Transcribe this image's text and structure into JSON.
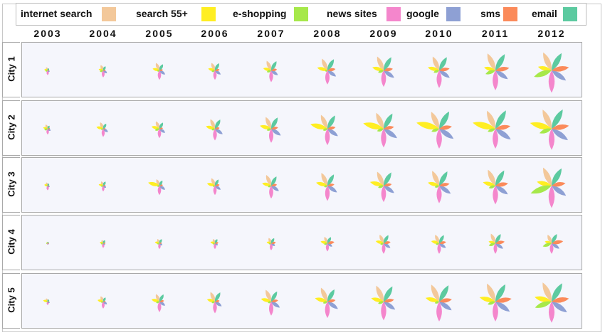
{
  "chart_data": {
    "type": "petal-glyph-matrix",
    "legend": [
      {
        "label": "internet search",
        "color": "#f3c89a"
      },
      {
        "label": "search 55+",
        "color": "#ffee22"
      },
      {
        "label": "e-shopping",
        "color": "#a6e84a"
      },
      {
        "label": "news sites",
        "color": "#f486cc"
      },
      {
        "label": "google",
        "color": "#8ea0d4"
      },
      {
        "label": "sms",
        "color": "#fb8a5a"
      },
      {
        "label": "email",
        "color": "#5ccaa0"
      }
    ],
    "years": [
      "2003",
      "2004",
      "2005",
      "2006",
      "2007",
      "2008",
      "2009",
      "2010",
      "2011",
      "2012"
    ],
    "cities": [
      "City 1",
      "City 2",
      "City 3",
      "City 4",
      "City 5"
    ],
    "values": [
      [
        [
          0.15,
          0.15,
          0.1,
          0.2,
          0.1,
          0.05,
          0.1
        ],
        [
          0.25,
          0.2,
          0.15,
          0.3,
          0.2,
          0.1,
          0.2
        ],
        [
          0.35,
          0.3,
          0.1,
          0.4,
          0.3,
          0.15,
          0.3
        ],
        [
          0.35,
          0.3,
          0.15,
          0.4,
          0.3,
          0.2,
          0.35
        ],
        [
          0.45,
          0.35,
          0.2,
          0.5,
          0.35,
          0.25,
          0.45
        ],
        [
          0.55,
          0.45,
          0.1,
          0.6,
          0.45,
          0.35,
          0.55
        ],
        [
          0.65,
          0.5,
          0.25,
          0.7,
          0.55,
          0.4,
          0.65
        ],
        [
          0.65,
          0.5,
          0.25,
          0.75,
          0.55,
          0.45,
          0.65
        ],
        [
          0.8,
          0.5,
          0.45,
          0.85,
          0.65,
          0.6,
          0.8
        ],
        [
          0.85,
          0.6,
          0.8,
          0.95,
          0.75,
          0.75,
          0.85
        ]
      ],
      [
        [
          0.2,
          0.2,
          0.15,
          0.25,
          0.15,
          0.1,
          0.15
        ],
        [
          0.3,
          0.3,
          0.1,
          0.35,
          0.25,
          0.1,
          0.25
        ],
        [
          0.35,
          0.35,
          0.2,
          0.4,
          0.3,
          0.15,
          0.3
        ],
        [
          0.45,
          0.4,
          0.15,
          0.5,
          0.4,
          0.2,
          0.45
        ],
        [
          0.55,
          0.5,
          0.2,
          0.6,
          0.5,
          0.3,
          0.55
        ],
        [
          0.65,
          0.75,
          0.2,
          0.7,
          0.55,
          0.35,
          0.65
        ],
        [
          0.75,
          0.9,
          0.3,
          0.8,
          0.7,
          0.45,
          0.75
        ],
        [
          0.8,
          1.0,
          0.35,
          0.85,
          0.75,
          0.55,
          0.85
        ],
        [
          0.85,
          1.0,
          0.35,
          0.85,
          0.8,
          0.65,
          0.9
        ],
        [
          0.9,
          0.95,
          0.55,
          0.9,
          0.85,
          0.75,
          0.95
        ]
      ],
      [
        [
          0.15,
          0.15,
          0.05,
          0.2,
          0.1,
          0.05,
          0.1
        ],
        [
          0.2,
          0.2,
          0.1,
          0.25,
          0.15,
          0.1,
          0.2
        ],
        [
          0.3,
          0.5,
          0.1,
          0.4,
          0.3,
          0.15,
          0.25
        ],
        [
          0.35,
          0.35,
          0.1,
          0.4,
          0.3,
          0.2,
          0.3
        ],
        [
          0.5,
          0.4,
          0.15,
          0.55,
          0.4,
          0.25,
          0.45
        ],
        [
          0.6,
          0.5,
          0.15,
          0.65,
          0.5,
          0.3,
          0.55
        ],
        [
          0.65,
          0.6,
          0.25,
          0.7,
          0.55,
          0.35,
          0.65
        ],
        [
          0.7,
          0.5,
          0.2,
          0.75,
          0.6,
          0.45,
          0.7
        ],
        [
          0.75,
          0.55,
          0.3,
          0.8,
          0.65,
          0.55,
          0.75
        ],
        [
          0.85,
          0.65,
          0.95,
          0.95,
          0.75,
          0.6,
          0.85
        ]
      ],
      [
        [
          0.05,
          0.05,
          0.05,
          0.05,
          0.05,
          0.05,
          0.05
        ],
        [
          0.15,
          0.15,
          0.1,
          0.2,
          0.1,
          0.1,
          0.15
        ],
        [
          0.2,
          0.2,
          0.1,
          0.25,
          0.15,
          0.1,
          0.2
        ],
        [
          0.2,
          0.2,
          0.1,
          0.25,
          0.15,
          0.15,
          0.2
        ],
        [
          0.25,
          0.2,
          0.1,
          0.3,
          0.2,
          0.2,
          0.25
        ],
        [
          0.3,
          0.3,
          0.15,
          0.35,
          0.25,
          0.3,
          0.3
        ],
        [
          0.4,
          0.35,
          0.15,
          0.45,
          0.35,
          0.3,
          0.4
        ],
        [
          0.4,
          0.35,
          0.15,
          0.45,
          0.35,
          0.3,
          0.4
        ],
        [
          0.45,
          0.3,
          0.3,
          0.45,
          0.4,
          0.4,
          0.45
        ],
        [
          0.4,
          0.3,
          0.4,
          0.45,
          0.4,
          0.5,
          0.45
        ]
      ],
      [
        [
          0.15,
          0.2,
          0.05,
          0.15,
          0.1,
          0.05,
          0.1
        ],
        [
          0.25,
          0.25,
          0.1,
          0.3,
          0.2,
          0.1,
          0.2
        ],
        [
          0.35,
          0.35,
          0.15,
          0.45,
          0.3,
          0.2,
          0.35
        ],
        [
          0.45,
          0.35,
          0.15,
          0.5,
          0.35,
          0.2,
          0.45
        ],
        [
          0.55,
          0.45,
          0.15,
          0.6,
          0.45,
          0.3,
          0.5
        ],
        [
          0.65,
          0.55,
          0.2,
          0.7,
          0.55,
          0.35,
          0.6
        ],
        [
          0.75,
          0.55,
          0.25,
          0.8,
          0.6,
          0.45,
          0.75
        ],
        [
          0.8,
          0.6,
          0.2,
          0.85,
          0.65,
          0.55,
          0.8
        ],
        [
          0.85,
          0.7,
          0.35,
          0.85,
          0.75,
          0.7,
          0.85
        ],
        [
          0.9,
          0.75,
          0.75,
          0.9,
          0.8,
          0.75,
          0.9
        ]
      ]
    ]
  }
}
